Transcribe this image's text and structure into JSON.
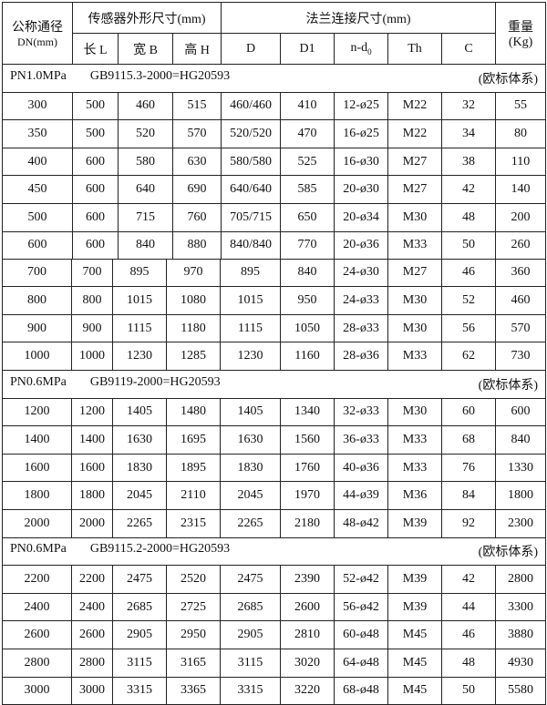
{
  "header": {
    "dn_label": "公称通径",
    "dn_unit": "DN(mm)",
    "sensor_group": "传感器外形尺寸(mm)",
    "flange_group": "法兰连接尺寸(mm)",
    "weight_label": "重量",
    "weight_unit": "(Kg)",
    "columns": [
      "长 L",
      "宽 B",
      "高 H",
      "D",
      "D1",
      "n-d",
      "Th",
      "C"
    ],
    "nd_subscript": "0"
  },
  "sections": [
    {
      "pressure": "PN1.0MPa",
      "standard": "GB9115.3-2000=HG20593",
      "system": "(欧标体系)",
      "rows": [
        [
          "300",
          "500",
          "460",
          "515",
          "460/460",
          "410",
          "12-ø25",
          "M22",
          "32",
          "55"
        ],
        [
          "350",
          "500",
          "520",
          "570",
          "520/520",
          "470",
          "16-ø25",
          "M22",
          "34",
          "80"
        ],
        [
          "400",
          "600",
          "580",
          "630",
          "580/580",
          "525",
          "16-ø30",
          "M27",
          "38",
          "110"
        ],
        [
          "450",
          "600",
          "640",
          "690",
          "640/640",
          "585",
          "20-ø30",
          "M27",
          "42",
          "140"
        ],
        [
          "500",
          "600",
          "715",
          "760",
          "705/715",
          "650",
          "20-ø34",
          "M30",
          "48",
          "200"
        ],
        [
          "600",
          "600",
          "840",
          "880",
          "840/840",
          "770",
          "20-ø36",
          "M33",
          "50",
          "260"
        ],
        [
          "700",
          "700",
          "895",
          "970",
          "895",
          "840",
          "24-ø30",
          "M27",
          "46",
          "360"
        ],
        [
          "800",
          "800",
          "1015",
          "1080",
          "1015",
          "950",
          "24-ø33",
          "M30",
          "52",
          "460"
        ],
        [
          "900",
          "900",
          "1115",
          "1180",
          "1115",
          "1050",
          "28-ø33",
          "M30",
          "56",
          "570"
        ],
        [
          "1000",
          "1000",
          "1230",
          "1285",
          "1230",
          "1160",
          "28-ø36",
          "M33",
          "62",
          "730"
        ]
      ]
    },
    {
      "pressure": "PN0.6MPa",
      "standard": "GB9119-2000=HG20593",
      "system": "(欧标体系)",
      "rows": [
        [
          "1200",
          "1200",
          "1405",
          "1480",
          "1405",
          "1340",
          "32-ø33",
          "M30",
          "60",
          "600"
        ],
        [
          "1400",
          "1400",
          "1630",
          "1695",
          "1630",
          "1560",
          "36-ø33",
          "M33",
          "68",
          "840"
        ],
        [
          "1600",
          "1600",
          "1830",
          "1895",
          "1830",
          "1760",
          "40-ø36",
          "M33",
          "76",
          "1330"
        ],
        [
          "1800",
          "1800",
          "2045",
          "2110",
          "2045",
          "1970",
          "44-ø39",
          "M36",
          "84",
          "1800"
        ],
        [
          "2000",
          "2000",
          "2265",
          "2315",
          "2265",
          "2180",
          "48-ø42",
          "M39",
          "92",
          "2300"
        ]
      ]
    },
    {
      "pressure": "PN0.6MPa",
      "standard": "GB9115.2-2000=HG20593",
      "system": "(欧标体系)",
      "rows": [
        [
          "2200",
          "2200",
          "2475",
          "2520",
          "2475",
          "2390",
          "52-ø42",
          "M39",
          "42",
          "2800"
        ],
        [
          "2400",
          "2400",
          "2685",
          "2725",
          "2685",
          "2600",
          "56-ø42",
          "M39",
          "44",
          "3300"
        ],
        [
          "2600",
          "2600",
          "2905",
          "2950",
          "2905",
          "2810",
          "60-ø48",
          "M45",
          "46",
          "3880"
        ],
        [
          "2800",
          "2800",
          "3115",
          "3165",
          "3115",
          "3020",
          "64-ø48",
          "M45",
          "48",
          "4930"
        ],
        [
          "3000",
          "3000",
          "3315",
          "3365",
          "3315",
          "3220",
          "68-ø48",
          "M45",
          "50",
          "5580"
        ]
      ]
    }
  ]
}
